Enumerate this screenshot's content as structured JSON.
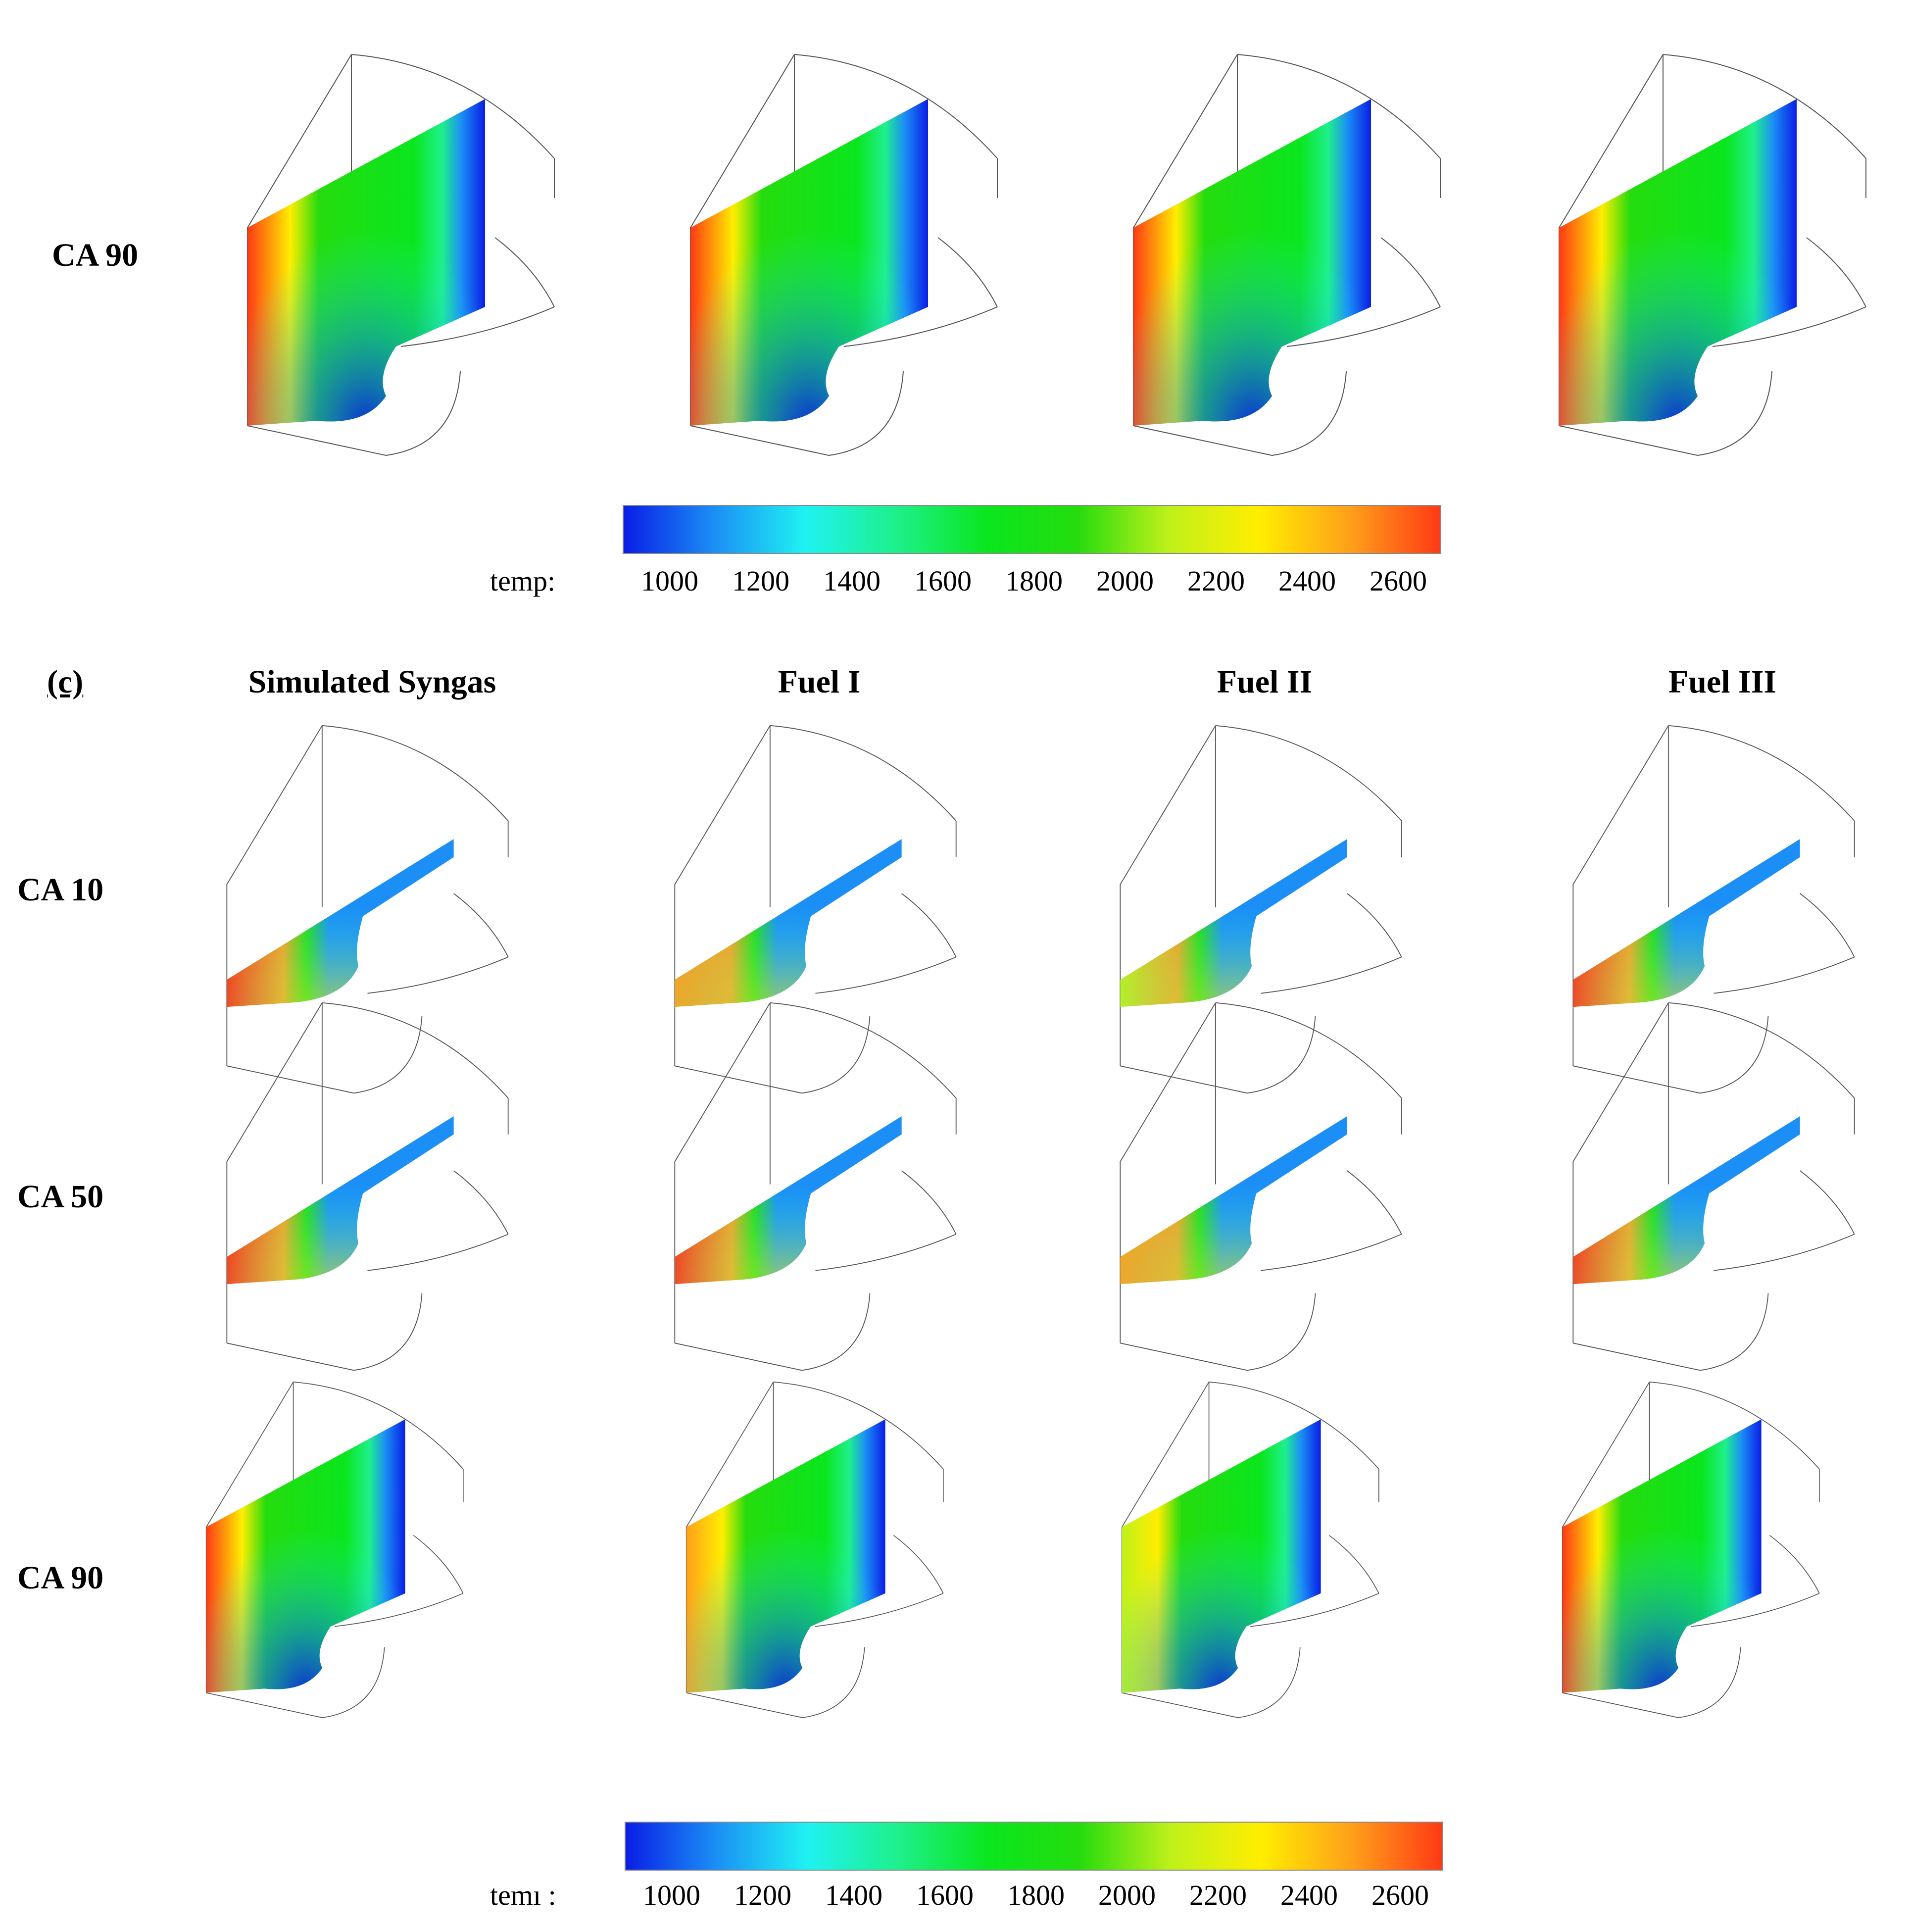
{
  "figure": {
    "top_row_label": "CA 90",
    "section_label": "(c)",
    "column_titles": [
      "Simulated Syngas",
      "Fuel I",
      "Fuel II",
      "Fuel III"
    ],
    "row_labels": [
      "CA 10",
      "CA 50",
      "CA 90"
    ]
  },
  "colorbar_top": {
    "label": "temp:",
    "ticks": [
      "1000",
      "1200",
      "1400",
      "1600",
      "1800",
      "2000",
      "2200",
      "2400",
      "2600"
    ]
  },
  "colorbar_bottom": {
    "label": "temı :",
    "ticks": [
      "1000",
      "1200",
      "1400",
      "1600",
      "1800",
      "2000",
      "2200",
      "2400",
      "2600"
    ]
  },
  "colors": {
    "scale": [
      "#0a1ee6",
      "#1b8ff5",
      "#1ff2f2",
      "#1ef08c",
      "#0ae61e",
      "#25dc0e",
      "#bff01a",
      "#ffee00",
      "#ffa01a",
      "#ff3a15"
    ],
    "wire": "#555555"
  }
}
